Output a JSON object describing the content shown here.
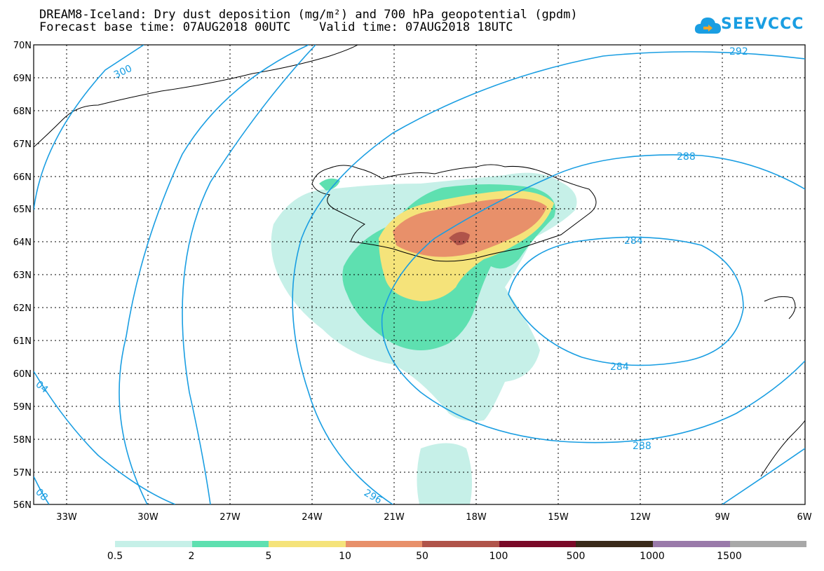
{
  "title": {
    "line1": "DREAM8-Iceland: Dry dust deposition (mg/m²) and 700 hPa geopotential (gpdm)",
    "line2": "Forecast base time: 07AUG2018 00UTC    Valid time: 07AUG2018 18UTC"
  },
  "logo": {
    "text": "SEEVCCC",
    "icon": "cloud-icon",
    "color": "#1a9ee2"
  },
  "map": {
    "lat_labels": [
      "70N",
      "69N",
      "68N",
      "67N",
      "66N",
      "65N",
      "64N",
      "63N",
      "62N",
      "61N",
      "60N",
      "59N",
      "58N",
      "57N",
      "56N"
    ],
    "lon_labels": [
      "33W",
      "30W",
      "27W",
      "24W",
      "21W",
      "18W",
      "15W",
      "12W",
      "9W",
      "6W"
    ],
    "contour_color": "#1a9ee2",
    "contour_labels": [
      "300",
      "292",
      "288",
      "284",
      "284",
      "288",
      "296",
      "04",
      "08"
    ]
  },
  "legend": {
    "colors": [
      "#c6f0e8",
      "#5ee0b0",
      "#f5e37a",
      "#e8906a",
      "#b0544a",
      "#7a0a28",
      "#3a2a1a",
      "#9a7aaa",
      "#a8a8a8"
    ],
    "labels": [
      "0.5",
      "2",
      "5",
      "10",
      "50",
      "100",
      "500",
      "1000",
      "1500"
    ]
  }
}
